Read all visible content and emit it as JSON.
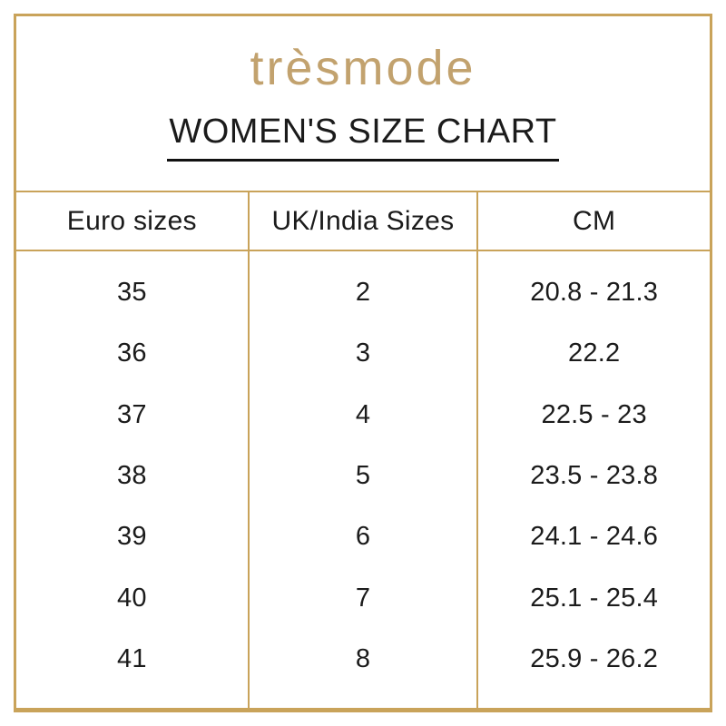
{
  "brand": {
    "logo_text": "trèsmode"
  },
  "title": "WOMEN'S SIZE CHART",
  "colors": {
    "gold_border": "#C9A35A",
    "logo_gold": "#C2A26E",
    "text": "#1B1B1B",
    "title_underline": "#111111",
    "background": "#FFFFFF"
  },
  "chart_data": {
    "type": "table",
    "title": "WOMEN'S SIZE CHART",
    "columns": [
      "Euro sizes",
      "UK/India Sizes",
      "CM"
    ],
    "rows": [
      [
        "35",
        "2",
        "20.8 - 21.3"
      ],
      [
        "36",
        "3",
        "22.2"
      ],
      [
        "37",
        "4",
        "22.5 - 23"
      ],
      [
        "38",
        "5",
        "23.5 - 23.8"
      ],
      [
        "39",
        "6",
        "24.1 - 24.6"
      ],
      [
        "40",
        "7",
        "25.1 - 25.4"
      ],
      [
        "41",
        "8",
        "25.9 - 26.2"
      ]
    ]
  }
}
